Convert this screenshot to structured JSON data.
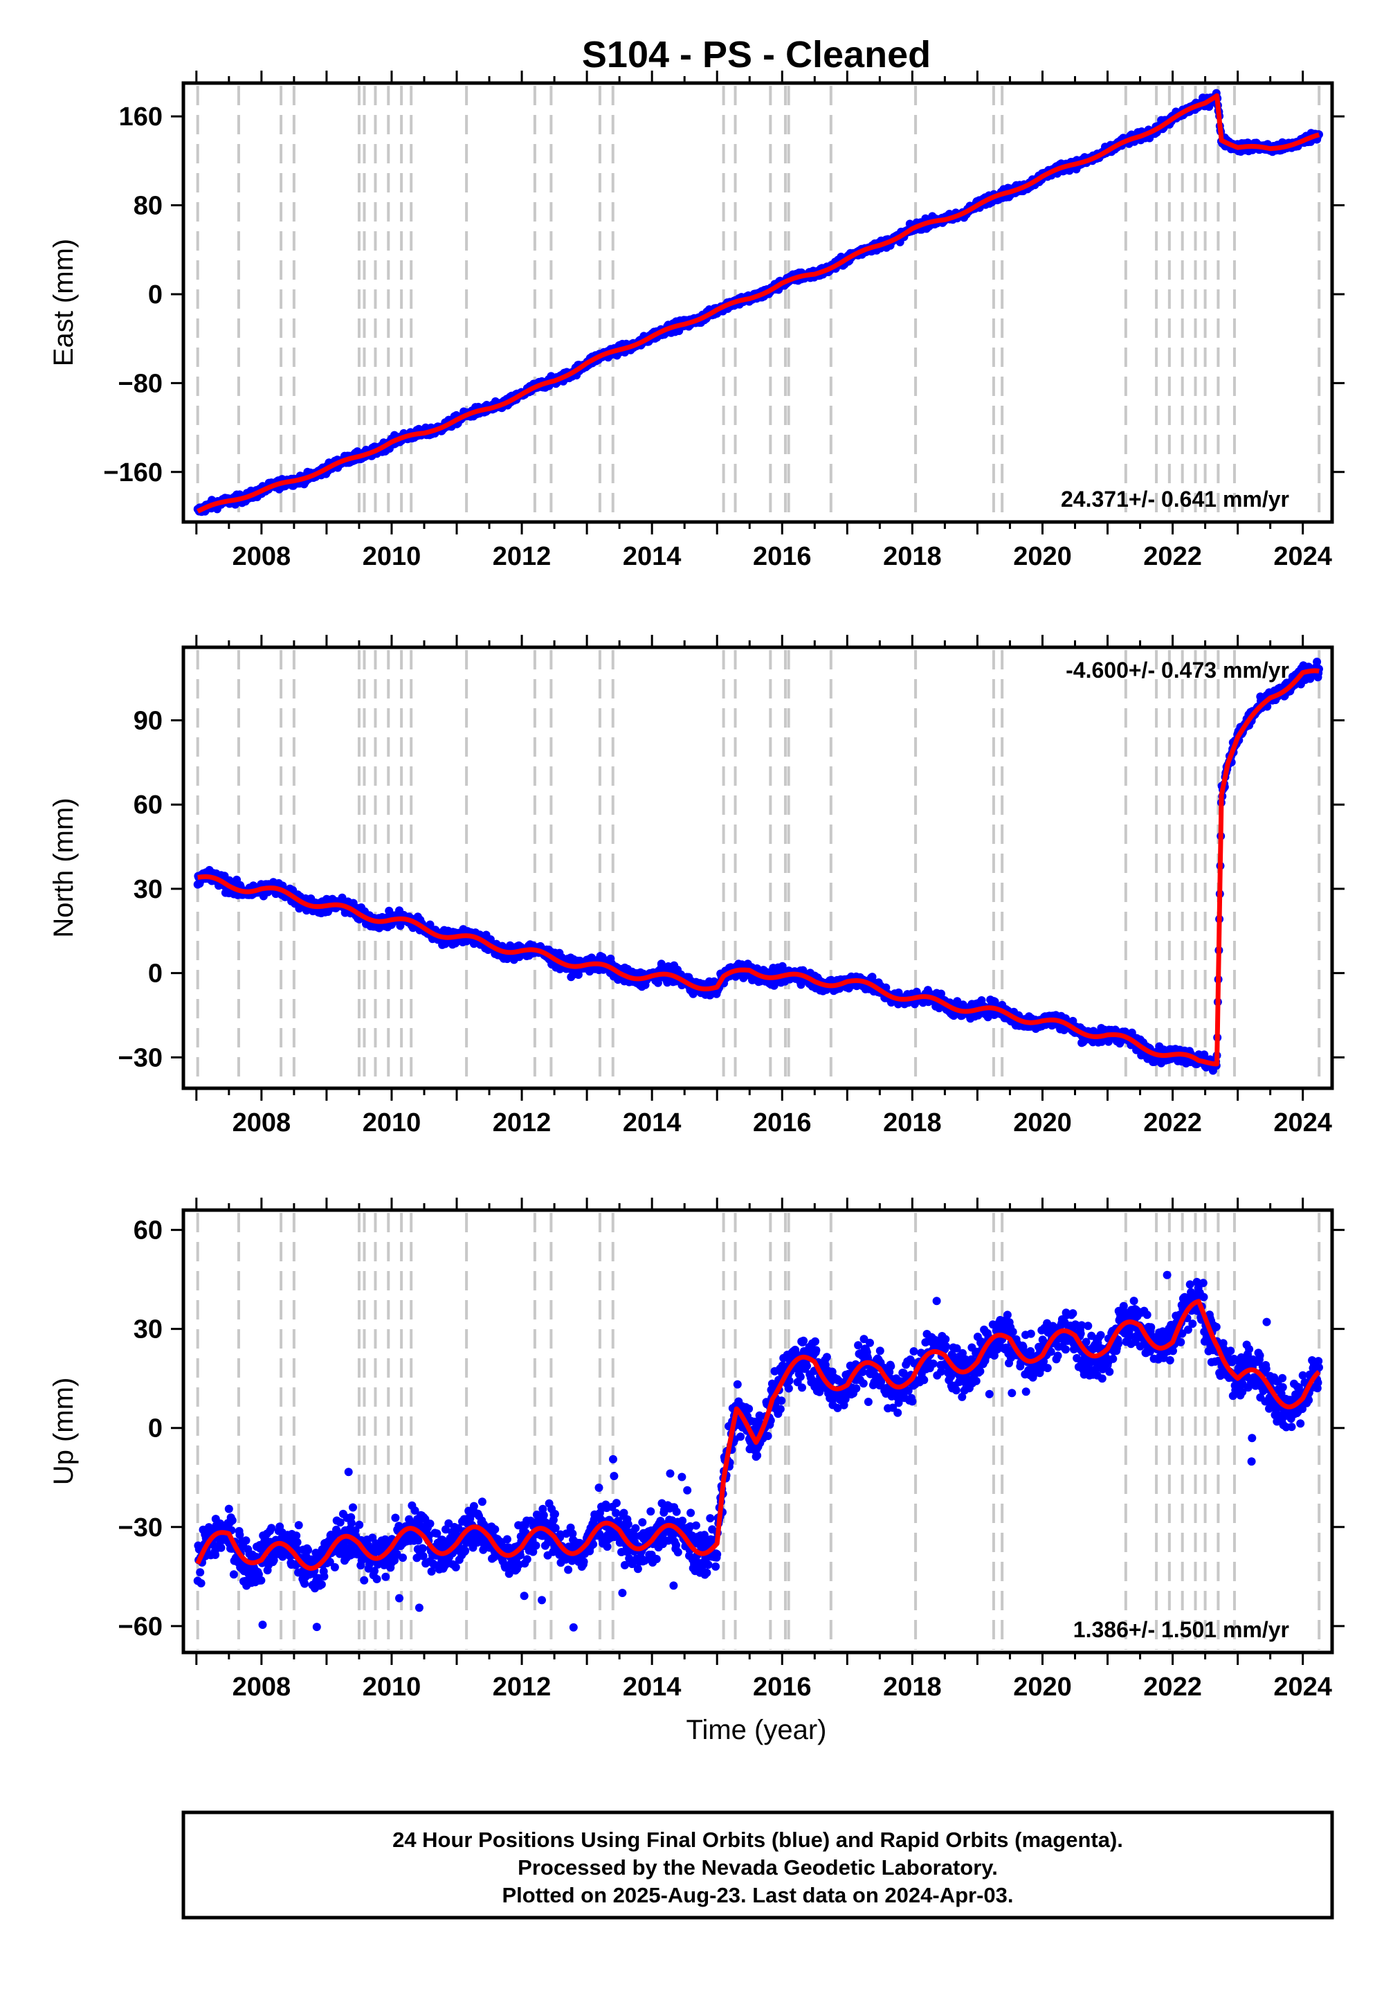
{
  "title": "S104  - PS - Cleaned",
  "caption": {
    "line1": "24 Hour Positions Using Final Orbits (blue) and Rapid Orbits (magenta).",
    "line2": "Processed by the Nevada Geodetic Laboratory.",
    "line3": "Plotted on 2025-Aug-23. Last data on 2024-Apr-03."
  },
  "colors": {
    "data": "#0000ff",
    "model": "#ff0000",
    "steps": "#c8c8c8",
    "frame": "#000000"
  },
  "chart_data": [
    {
      "type": "scatter",
      "component": "east",
      "ylabel": "East (mm)",
      "xlabel": "",
      "xlim": [
        2006.8,
        2024.45
      ],
      "ylim": [
        -205,
        190
      ],
      "xticks": [
        2008,
        2010,
        2012,
        2014,
        2016,
        2018,
        2020,
        2022,
        2024
      ],
      "yticks": [
        -160,
        -80,
        0,
        80,
        160
      ],
      "rate_label": "24.371+/- 0.641 mm/yr",
      "rate_position": "bottom-right",
      "series": [
        {
          "color": "blue",
          "x": [
            2007.0,
            2007.5,
            2008.0,
            2008.5,
            2009.0,
            2009.5,
            2010.0,
            2010.5,
            2011.0,
            2011.5,
            2012.0,
            2012.5,
            2013.0,
            2013.5,
            2014.0,
            2014.5,
            2015.0,
            2015.5,
            2016.0,
            2016.5,
            2017.0,
            2017.5,
            2018.0,
            2018.5,
            2019.0,
            2019.5,
            2020.0,
            2020.5,
            2021.0,
            2021.5,
            2022.0,
            2022.5,
            2022.68,
            2022.75,
            2023.0,
            2023.5,
            2024.0,
            2024.25
          ],
          "y": [
            -196,
            -186,
            -177,
            -168,
            -157,
            -146,
            -133,
            -125,
            -113,
            -103,
            -90,
            -78,
            -62,
            -50,
            -38,
            -27,
            -14,
            -4,
            10,
            18,
            32,
            44,
            59,
            67,
            80,
            92,
            106,
            117,
            129,
            142,
            158,
            172,
            180,
            140,
            132,
            131,
            138,
            142
          ]
        }
      ],
      "steps": [
        2007.02,
        2007.65,
        2008.3,
        2008.5,
        2009.5,
        2009.58,
        2009.75,
        2009.95,
        2010.15,
        2010.3,
        2011.15,
        2012.2,
        2012.45,
        2013.2,
        2013.4,
        2015.1,
        2015.28,
        2015.82,
        2016.05,
        2016.1,
        2016.75,
        2018.05,
        2019.25,
        2019.38,
        2021.28,
        2021.75,
        2021.95,
        2022.15,
        2022.35,
        2022.5,
        2022.7,
        2022.95,
        2024.25
      ]
    },
    {
      "type": "scatter",
      "component": "north",
      "ylabel": "North (mm)",
      "xlabel": "",
      "xlim": [
        2006.8,
        2024.45
      ],
      "ylim": [
        -41,
        116
      ],
      "xticks": [
        2008,
        2010,
        2012,
        2014,
        2016,
        2018,
        2020,
        2022,
        2024
      ],
      "yticks": [
        -30,
        0,
        30,
        60,
        90
      ],
      "rate_label": "-4.600+/- 0.473 mm/yr",
      "rate_position": "top-right",
      "series": [
        {
          "color": "blue",
          "x": [
            2007.0,
            2007.5,
            2008.0,
            2008.5,
            2009.0,
            2009.5,
            2010.0,
            2010.5,
            2011.0,
            2011.5,
            2012.0,
            2012.5,
            2013.0,
            2013.5,
            2014.0,
            2014.5,
            2015.0,
            2015.1,
            2015.5,
            2016.0,
            2016.5,
            2017.0,
            2017.5,
            2018.0,
            2018.5,
            2019.0,
            2019.5,
            2020.0,
            2020.5,
            2021.0,
            2021.5,
            2022.0,
            2022.4,
            2022.68,
            2022.75,
            2022.85,
            2023.0,
            2023.5,
            2024.0,
            2024.25
          ],
          "y": [
            34,
            31,
            30,
            27,
            24,
            21,
            19,
            16,
            13,
            10,
            8,
            5,
            3,
            0,
            -1,
            -3,
            -5,
            -2,
            1,
            -1,
            -3,
            -3,
            -6,
            -9,
            -11,
            -13,
            -15,
            -17,
            -20,
            -22,
            -26,
            -29,
            -32,
            -31,
            65,
            76,
            84,
            98,
            107,
            106
          ]
        }
      ],
      "steps": [
        2007.02,
        2007.65,
        2008.3,
        2008.5,
        2009.5,
        2009.58,
        2009.75,
        2009.95,
        2010.15,
        2010.3,
        2011.15,
        2012.2,
        2012.45,
        2013.2,
        2013.4,
        2015.1,
        2015.28,
        2015.82,
        2016.05,
        2016.1,
        2016.75,
        2018.05,
        2019.25,
        2019.38,
        2021.28,
        2021.75,
        2021.95,
        2022.15,
        2022.35,
        2022.5,
        2022.7,
        2022.95,
        2024.25
      ]
    },
    {
      "type": "scatter",
      "component": "up",
      "ylabel": "Up (mm)",
      "xlabel": "Time (year)",
      "xlim": [
        2006.8,
        2024.45
      ],
      "ylim": [
        -68,
        66
      ],
      "xticks": [
        2008,
        2010,
        2012,
        2014,
        2016,
        2018,
        2020,
        2022,
        2024
      ],
      "yticks": [
        -60,
        -30,
        0,
        30,
        60
      ],
      "rate_label": "1.386+/- 1.501 mm/yr",
      "rate_position": "bottom-right",
      "series": [
        {
          "color": "blue",
          "x": [
            2007.0,
            2007.5,
            2008.0,
            2008.5,
            2009.0,
            2009.5,
            2010.0,
            2010.5,
            2011.0,
            2011.5,
            2012.0,
            2012.5,
            2013.0,
            2013.5,
            2014.0,
            2014.5,
            2015.0,
            2015.1,
            2015.3,
            2015.6,
            2015.85,
            2016.0,
            2016.5,
            2017.0,
            2017.5,
            2018.0,
            2018.5,
            2019.0,
            2019.5,
            2020.0,
            2020.5,
            2021.0,
            2021.5,
            2022.0,
            2022.4,
            2022.7,
            2023.0,
            2023.5,
            2024.0,
            2024.25
          ],
          "y": [
            -42,
            -32,
            -40,
            -38,
            -39,
            -35,
            -36,
            -33,
            -35,
            -33,
            -36,
            -33,
            -35,
            -31,
            -34,
            -33,
            -35,
            -18,
            2,
            -2,
            12,
            14,
            20,
            13,
            18,
            15,
            22,
            20,
            27,
            22,
            28,
            24,
            31,
            26,
            36,
            28,
            15,
            12,
            9,
            13
          ]
        }
      ],
      "steps": [
        2007.02,
        2007.65,
        2008.3,
        2008.5,
        2009.5,
        2009.58,
        2009.75,
        2009.95,
        2010.15,
        2010.3,
        2011.15,
        2012.2,
        2012.45,
        2013.2,
        2013.4,
        2015.1,
        2015.28,
        2015.82,
        2016.05,
        2016.1,
        2016.75,
        2018.05,
        2019.25,
        2019.38,
        2021.28,
        2021.75,
        2021.95,
        2022.15,
        2022.35,
        2022.5,
        2022.7,
        2022.95,
        2024.25
      ]
    }
  ]
}
